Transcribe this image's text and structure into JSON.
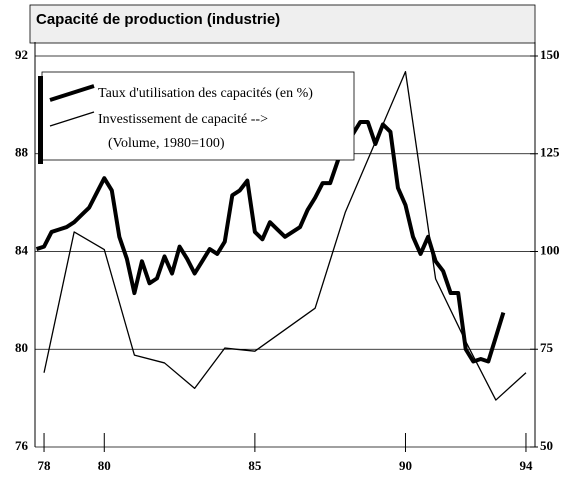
{
  "chart_data": {
    "type": "line",
    "title": "Capacité de production (industrie)",
    "xlim": [
      77.7,
      94.3
    ],
    "xticks": [
      78,
      80,
      85,
      90,
      94
    ],
    "ylim": [
      76,
      92
    ],
    "yticks": [
      76,
      80,
      84,
      88,
      92
    ],
    "y2lim": [
      50,
      150
    ],
    "y2ticks": [
      50,
      75,
      100,
      125,
      150
    ],
    "grid": true,
    "legend": "upper left",
    "series": [
      {
        "name": "Taux d'utilisation des capacités (en %)",
        "color": "#000000",
        "width": 4,
        "axis": "y",
        "x": [
          77.75,
          78,
          78.25,
          78.5,
          78.75,
          79,
          79.25,
          79.5,
          79.75,
          80,
          80.25,
          80.5,
          80.75,
          81,
          81.25,
          81.5,
          81.75,
          82,
          82.25,
          82.5,
          82.75,
          83,
          83.25,
          83.5,
          83.75,
          84,
          84.25,
          84.5,
          84.75,
          85,
          85.25,
          85.5,
          85.75,
          86,
          86.25,
          86.5,
          86.75,
          87,
          87.25,
          87.5,
          87.75,
          88,
          88.25,
          88.5,
          88.75,
          89,
          89.25,
          89.5,
          89.75,
          90,
          90.25,
          90.5,
          90.75,
          91,
          91.25,
          91.5,
          91.75,
          92,
          92.25,
          92.5,
          92.75,
          93,
          93.25
        ],
        "values": [
          84.1,
          84.2,
          84.8,
          84.9,
          85.0,
          85.2,
          85.5,
          85.8,
          86.4,
          87.0,
          86.5,
          84.6,
          83.7,
          82.3,
          83.6,
          82.7,
          82.9,
          83.8,
          83.1,
          84.2,
          83.7,
          83.1,
          83.6,
          84.1,
          83.9,
          84.4,
          86.3,
          86.5,
          86.9,
          84.8,
          84.5,
          85.2,
          84.9,
          84.6,
          84.8,
          85.0,
          85.7,
          86.2,
          86.8,
          86.8,
          87.7,
          88.6,
          88.8,
          89.3,
          89.3,
          88.4,
          89.2,
          88.9,
          86.6,
          85.9,
          84.6,
          83.9,
          84.6,
          83.6,
          83.2,
          82.3,
          82.3,
          80.0,
          79.5,
          79.6,
          79.5,
          80.5,
          81.5
        ]
      },
      {
        "name": "Investissement de capacité -->",
        "note": "(Volume, 1980=100)",
        "color": "#000000",
        "width": 1.3,
        "axis": "y2",
        "x": [
          78,
          79,
          80,
          81,
          82,
          83,
          84,
          85,
          86,
          87,
          88,
          89,
          90,
          91,
          92,
          93,
          94
        ],
        "values": [
          69,
          105,
          100.5,
          73.5,
          71.5,
          65,
          75.3,
          74.5,
          80,
          85.5,
          110,
          128,
          146,
          93,
          77,
          62,
          69
        ]
      }
    ]
  }
}
